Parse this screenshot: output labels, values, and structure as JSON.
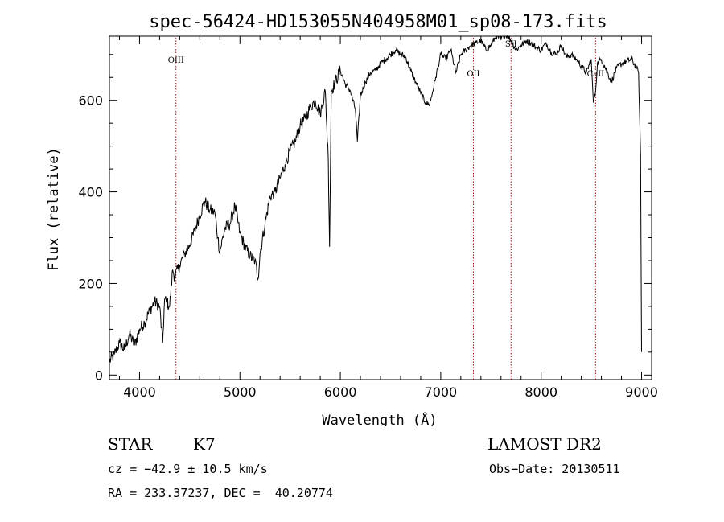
{
  "chart_data": {
    "type": "line",
    "title": "spec-56424-HD153055N404958M01_sp08-173.fits",
    "xlabel": "Wavelength (Å)",
    "ylabel": "Flux (relative)",
    "xlim": [
      3700,
      9100
    ],
    "ylim": [
      -10,
      740
    ],
    "xticks": [
      4000,
      5000,
      6000,
      7000,
      8000,
      9000
    ],
    "yticks": [
      0,
      200,
      400,
      600
    ],
    "grid": false,
    "series": [
      {
        "color": "#000000",
        "x": [
          3700,
          3750,
          3800,
          3850,
          3900,
          3950,
          4000,
          4050,
          4100,
          4150,
          4200,
          4230,
          4250,
          4300,
          4330,
          4350,
          4400,
          4450,
          4500,
          4550,
          4600,
          4650,
          4700,
          4750,
          4780,
          4800,
          4850,
          4900,
          4950,
          5000,
          5050,
          5100,
          5150,
          5180,
          5200,
          5250,
          5300,
          5350,
          5400,
          5450,
          5500,
          5550,
          5600,
          5650,
          5700,
          5750,
          5800,
          5850,
          5880,
          5893,
          5910,
          5950,
          6000,
          6050,
          6100,
          6150,
          6170,
          6200,
          6250,
          6300,
          6350,
          6400,
          6450,
          6500,
          6550,
          6600,
          6650,
          6700,
          6750,
          6800,
          6850,
          6880,
          6900,
          6950,
          7000,
          7050,
          7100,
          7150,
          7200,
          7250,
          7300,
          7350,
          7400,
          7450,
          7500,
          7550,
          7600,
          7650,
          7700,
          7750,
          7800,
          7850,
          7900,
          7950,
          8000,
          8050,
          8100,
          8150,
          8200,
          8250,
          8300,
          8350,
          8400,
          8450,
          8498,
          8520,
          8542,
          8560,
          8600,
          8662,
          8700,
          8750,
          8800,
          8850,
          8900,
          8950,
          8970,
          8990,
          9000
        ],
        "y": [
          30,
          45,
          70,
          55,
          90,
          65,
          100,
          115,
          140,
          160,
          150,
          70,
          165,
          150,
          230,
          215,
          240,
          265,
          285,
          315,
          350,
          380,
          360,
          355,
          300,
          270,
          320,
          330,
          370,
          310,
          280,
          260,
          250,
          210,
          265,
          330,
          390,
          400,
          430,
          460,
          490,
          510,
          545,
          560,
          585,
          600,
          570,
          620,
          470,
          280,
          620,
          640,
          665,
          635,
          620,
          580,
          510,
          610,
          640,
          660,
          665,
          680,
          690,
          700,
          710,
          700,
          695,
          665,
          640,
          615,
          595,
          590,
          600,
          650,
          700,
          690,
          710,
          660,
          700,
          710,
          720,
          725,
          730,
          710,
          720,
          740,
          735,
          745,
          730,
          710,
          720,
          730,
          725,
          715,
          710,
          725,
          705,
          700,
          720,
          695,
          700,
          690,
          675,
          660,
          690,
          595,
          620,
          680,
          690,
          660,
          640,
          670,
          680,
          685,
          690,
          670,
          660,
          480,
          50
        ]
      }
    ],
    "annotations": [
      {
        "label": "OIII",
        "x": 4363
      },
      {
        "label": "OII",
        "x": 7325
      },
      {
        "label": "SII",
        "x": 7700
      },
      {
        "label": "CaII",
        "x": 8542
      }
    ],
    "line_color": "#a01010"
  },
  "info": {
    "object_type": "STAR",
    "subclass": "K7",
    "cz": "cz = −42.9 ± 10.5 km/s",
    "coords": "RA = 233.37237, DEC =  40.20774",
    "survey": "LAMOST DR2",
    "obs_date": "Obs−Date: 20130511"
  }
}
